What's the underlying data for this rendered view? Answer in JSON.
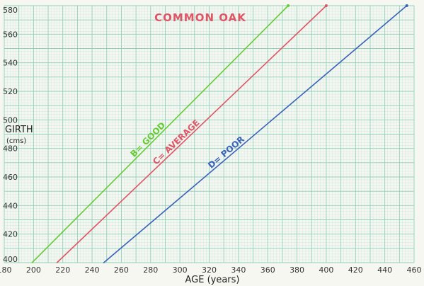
{
  "chart_data": {
    "type": "line",
    "title": "COMMON OAK",
    "xlabel": "AGE (years)",
    "ylabel": "GIRTH",
    "ylabel_unit": "(cms)",
    "xlim": [
      180,
      460
    ],
    "ylim": [
      400,
      580
    ],
    "x_ticks": [
      180,
      200,
      220,
      240,
      260,
      280,
      300,
      320,
      340,
      360,
      380,
      400,
      420,
      440,
      460
    ],
    "y_ticks": [
      400,
      420,
      440,
      460,
      480,
      500,
      520,
      540,
      560,
      580
    ],
    "grid": true,
    "series": [
      {
        "name": "B= GOOD",
        "color": "#66cc33",
        "points": [
          [
            199,
            400
          ],
          [
            374,
            580
          ]
        ]
      },
      {
        "name": "C= AVERAGE",
        "color": "#e05565",
        "points": [
          [
            216,
            400
          ],
          [
            400,
            580
          ]
        ]
      },
      {
        "name": "D= POOR",
        "color": "#3a62b8",
        "points": [
          [
            248,
            400
          ],
          [
            455,
            580
          ]
        ]
      }
    ],
    "colors": {
      "title": "#e05565",
      "grid_major": "#8fd0bb",
      "grid_minor": "#cde9df"
    }
  }
}
